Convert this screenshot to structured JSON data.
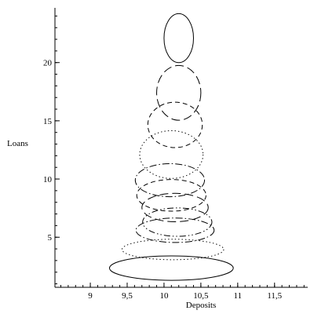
{
  "chart_data": {
    "type": "line",
    "title": "",
    "xlabel": "Deposits",
    "ylabel": "Loans",
    "xlim": [
      8.52,
      11.95
    ],
    "ylim": [
      0.7,
      24.7
    ],
    "x_ticks": [
      {
        "value": 9,
        "label": "9"
      },
      {
        "value": 9.5,
        "label": "9,5"
      },
      {
        "value": 10,
        "label": "10"
      },
      {
        "value": 10.5,
        "label": "10,5"
      },
      {
        "value": 11,
        "label": "11"
      },
      {
        "value": 11.5,
        "label": "11,5"
      }
    ],
    "y_ticks": [
      {
        "value": 5,
        "label": "5"
      },
      {
        "value": 10,
        "label": "10"
      },
      {
        "value": 15,
        "label": "15"
      },
      {
        "value": 20,
        "label": "20"
      }
    ],
    "x_minor_step": 0.1,
    "y_minor_step": 1,
    "grid": false,
    "legend": "none",
    "series": [
      {
        "center": [
          10.1,
          2.35
        ],
        "radii": [
          0.84,
          1.05
        ],
        "style": "solid"
      },
      {
        "center": [
          10.12,
          3.95
        ],
        "radii": [
          0.69,
          0.88
        ],
        "style": "dot"
      },
      {
        "center": [
          10.15,
          5.6
        ],
        "radii": [
          0.53,
          1.05
        ],
        "style": "dashdot"
      },
      {
        "center": [
          10.18,
          6.3
        ],
        "radii": [
          0.47,
          1.22
        ],
        "style": "dashdotdot"
      },
      {
        "center": [
          10.15,
          7.55
        ],
        "radii": [
          0.45,
          1.22
        ],
        "style": "longdash"
      },
      {
        "center": [
          10.1,
          8.6
        ],
        "radii": [
          0.47,
          1.36
        ],
        "style": "dash"
      },
      {
        "center": [
          10.08,
          9.9
        ],
        "radii": [
          0.47,
          1.42
        ],
        "style": "dashdot"
      },
      {
        "center": [
          10.1,
          12.1
        ],
        "radii": [
          0.43,
          2.05
        ],
        "style": "dot"
      },
      {
        "center": [
          10.15,
          14.65
        ],
        "radii": [
          0.37,
          1.95
        ],
        "style": "dash"
      },
      {
        "center": [
          10.2,
          17.4
        ],
        "radii": [
          0.3,
          2.35
        ],
        "style": "longdash"
      },
      {
        "center": [
          10.2,
          22.1
        ],
        "radii": [
          0.2,
          2.1
        ],
        "style": "solid"
      }
    ]
  }
}
